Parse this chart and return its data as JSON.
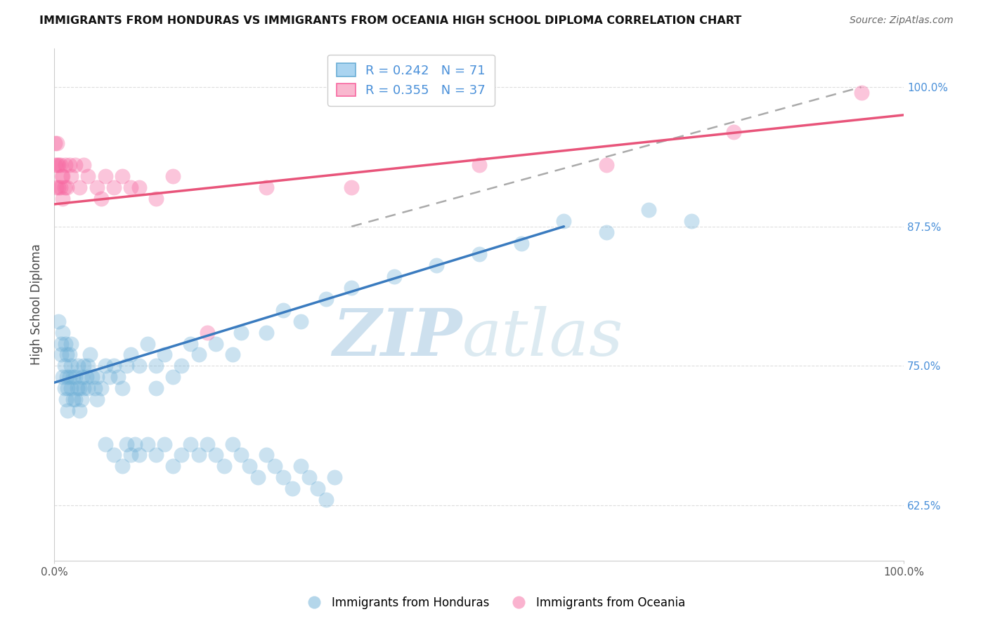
{
  "title": "IMMIGRANTS FROM HONDURAS VS IMMIGRANTS FROM OCEANIA HIGH SCHOOL DIPLOMA CORRELATION CHART",
  "source": "Source: ZipAtlas.com",
  "ylabel": "High School Diploma",
  "yticks": [
    0.625,
    0.75,
    0.875,
    1.0
  ],
  "ytick_labels": [
    "62.5%",
    "75.0%",
    "87.5%",
    "100.0%"
  ],
  "xlim": [
    0.0,
    1.0
  ],
  "ylim": [
    0.575,
    1.035
  ],
  "R_honduras": 0.242,
  "N_honduras": 71,
  "R_oceania": 0.355,
  "N_oceania": 37,
  "color_honduras": "#6baed6",
  "color_oceania": "#f768a1",
  "legend_blue_label": "Immigrants from Honduras",
  "legend_pink_label": "Immigrants from Oceania",
  "background_color": "#ffffff",
  "grid_color": "#dddddd",
  "honduras_x": [
    0.005,
    0.008,
    0.008,
    0.01,
    0.01,
    0.012,
    0.012,
    0.013,
    0.014,
    0.015,
    0.015,
    0.016,
    0.016,
    0.018,
    0.018,
    0.02,
    0.02,
    0.02,
    0.022,
    0.022,
    0.025,
    0.025,
    0.027,
    0.028,
    0.03,
    0.03,
    0.032,
    0.033,
    0.035,
    0.035,
    0.038,
    0.04,
    0.04,
    0.042,
    0.045,
    0.048,
    0.05,
    0.05,
    0.055,
    0.06,
    0.065,
    0.07,
    0.075,
    0.08,
    0.085,
    0.09,
    0.1,
    0.11,
    0.12,
    0.12,
    0.13,
    0.14,
    0.15,
    0.16,
    0.17,
    0.19,
    0.21,
    0.22,
    0.25,
    0.27,
    0.29,
    0.32,
    0.35,
    0.4,
    0.45,
    0.5,
    0.55,
    0.6,
    0.65,
    0.7,
    0.75
  ],
  "honduras_y": [
    0.79,
    0.76,
    0.77,
    0.74,
    0.78,
    0.73,
    0.75,
    0.77,
    0.72,
    0.74,
    0.76,
    0.71,
    0.73,
    0.74,
    0.76,
    0.73,
    0.75,
    0.77,
    0.72,
    0.74,
    0.72,
    0.74,
    0.73,
    0.75,
    0.71,
    0.73,
    0.72,
    0.74,
    0.73,
    0.75,
    0.74,
    0.73,
    0.75,
    0.76,
    0.74,
    0.73,
    0.72,
    0.74,
    0.73,
    0.75,
    0.74,
    0.75,
    0.74,
    0.73,
    0.75,
    0.76,
    0.75,
    0.77,
    0.73,
    0.75,
    0.76,
    0.74,
    0.75,
    0.77,
    0.76,
    0.77,
    0.76,
    0.78,
    0.78,
    0.8,
    0.79,
    0.81,
    0.82,
    0.83,
    0.84,
    0.85,
    0.86,
    0.88,
    0.87,
    0.89,
    0.88
  ],
  "honduras_low_x": [
    0.06,
    0.07,
    0.08,
    0.085,
    0.09,
    0.095,
    0.1,
    0.11,
    0.12,
    0.13,
    0.14,
    0.15,
    0.16,
    0.17,
    0.18,
    0.19,
    0.2,
    0.21,
    0.22,
    0.23,
    0.24,
    0.25,
    0.26,
    0.27,
    0.28,
    0.29,
    0.3,
    0.31,
    0.32,
    0.33
  ],
  "honduras_low_y": [
    0.68,
    0.67,
    0.66,
    0.68,
    0.67,
    0.68,
    0.67,
    0.68,
    0.67,
    0.68,
    0.66,
    0.67,
    0.68,
    0.67,
    0.68,
    0.67,
    0.66,
    0.68,
    0.67,
    0.66,
    0.65,
    0.67,
    0.66,
    0.65,
    0.64,
    0.66,
    0.65,
    0.64,
    0.63,
    0.65
  ],
  "oceania_x": [
    0.001,
    0.001,
    0.002,
    0.003,
    0.003,
    0.005,
    0.005,
    0.007,
    0.007,
    0.009,
    0.01,
    0.01,
    0.012,
    0.013,
    0.015,
    0.018,
    0.02,
    0.025,
    0.03,
    0.035,
    0.04,
    0.05,
    0.055,
    0.06,
    0.07,
    0.08,
    0.09,
    0.1,
    0.12,
    0.14,
    0.18,
    0.25,
    0.35,
    0.5,
    0.65,
    0.8,
    0.95
  ],
  "oceania_y": [
    0.93,
    0.95,
    0.91,
    0.93,
    0.95,
    0.91,
    0.93,
    0.91,
    0.93,
    0.92,
    0.9,
    0.92,
    0.91,
    0.93,
    0.91,
    0.93,
    0.92,
    0.93,
    0.91,
    0.93,
    0.92,
    0.91,
    0.9,
    0.92,
    0.91,
    0.92,
    0.91,
    0.91,
    0.9,
    0.92,
    0.78,
    0.91,
    0.91,
    0.93,
    0.93,
    0.96,
    0.995
  ],
  "blue_line_x": [
    0.0,
    0.6
  ],
  "blue_line_y": [
    0.735,
    0.875
  ],
  "pink_line_x": [
    0.0,
    1.0
  ],
  "pink_line_y": [
    0.895,
    0.975
  ],
  "dash_line_x": [
    0.35,
    0.95
  ],
  "dash_line_y": [
    0.875,
    1.0
  ]
}
